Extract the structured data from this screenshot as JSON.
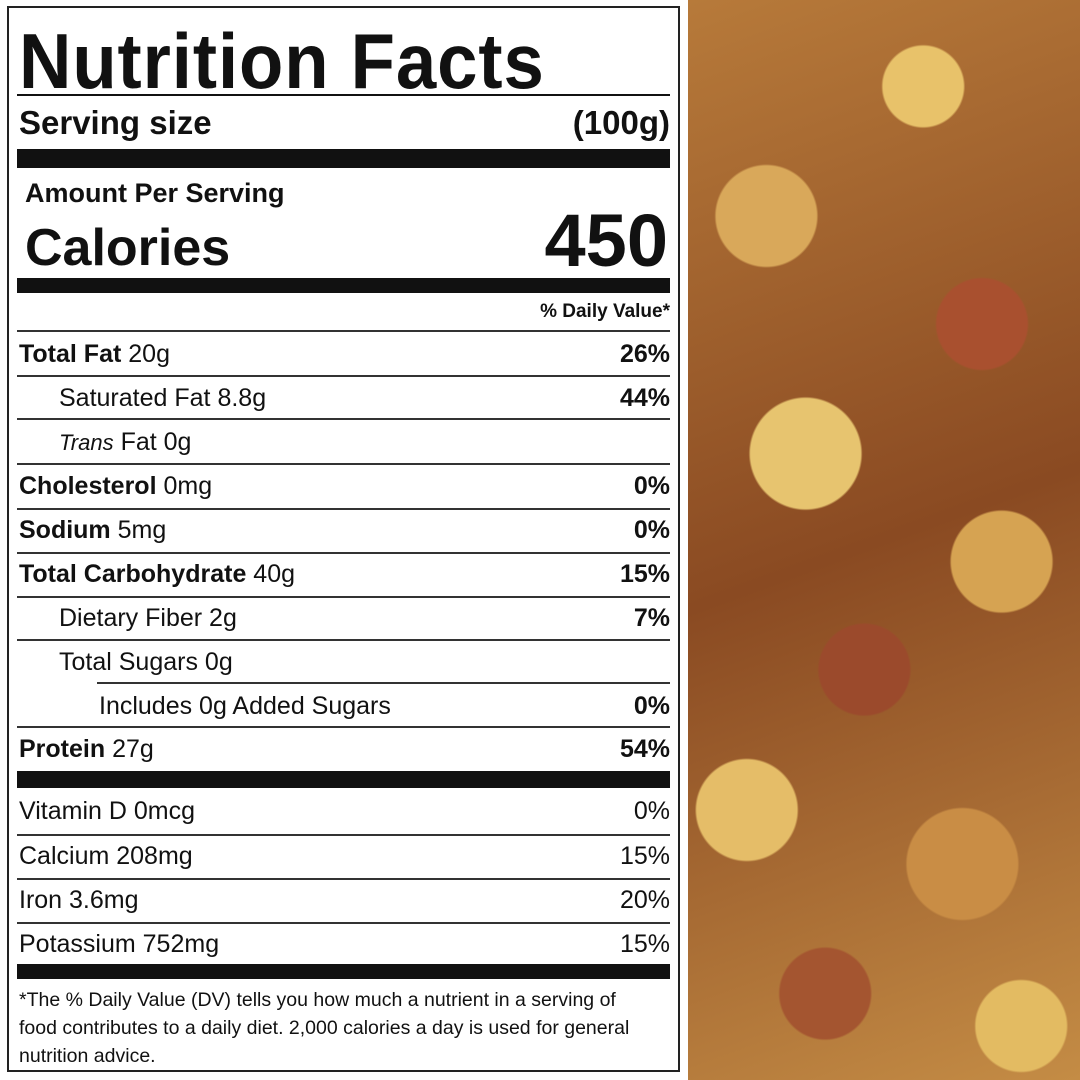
{
  "label": {
    "title": "Nutrition Facts",
    "serving_size_label": "Serving size",
    "serving_size_value": "(100g)",
    "amount_per_serving": "Amount Per Serving",
    "calories_label": "Calories",
    "calories_value": "450",
    "dv_header": "% Daily Value*",
    "rows": [
      {
        "name": "Total Fat",
        "amount": "20g",
        "dv": "26%"
      },
      {
        "name": "Saturated Fat",
        "amount": "8.8g",
        "dv": "44%"
      },
      {
        "name": "Trans",
        "amount": "Fat 0g",
        "dv": ""
      },
      {
        "name": "Cholesterol",
        "amount": "0mg",
        "dv": "0%"
      },
      {
        "name": "Sodium",
        "amount": "5mg",
        "dv": "0%"
      },
      {
        "name": "Total Carbohydrate",
        "amount": "40g",
        "dv": "15%"
      },
      {
        "name": "Dietary Fiber",
        "amount": "2g",
        "dv": "7%"
      },
      {
        "name": "Total Sugars",
        "amount": "0g",
        "dv": ""
      },
      {
        "name": "Includes 0g Added Sugars",
        "amount": "",
        "dv": "0%"
      },
      {
        "name": "Protein",
        "amount": "27g",
        "dv": "54%"
      }
    ],
    "vitamins": [
      {
        "name": "Vitamin D 0mcg",
        "dv": "0%"
      },
      {
        "name": "Calcium 208mg",
        "dv": "15%"
      },
      {
        "name": "Iron 3.6mg",
        "dv": "20%"
      },
      {
        "name": "Potassium 752mg",
        "dv": "15%"
      }
    ],
    "footnote": "*The % Daily Value (DV) tells you how much a nutrient in a serving of food contributes to a daily diet. 2,000 calories a day is used for general nutrition advice."
  },
  "photo": {
    "icon": "roasted-beans-photo"
  }
}
